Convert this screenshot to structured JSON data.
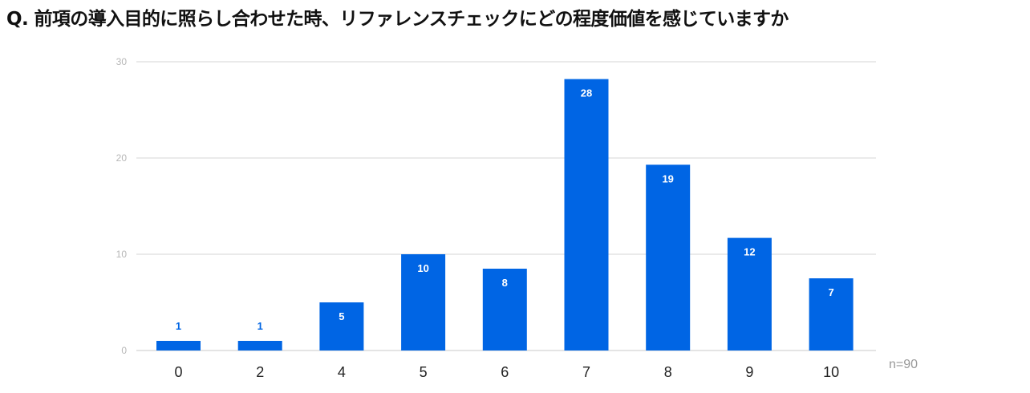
{
  "chart_data": {
    "type": "bar",
    "title": "Q. 前項の導入目的に照らし合わせた時、リファレンスチェックにどの程度価値を感じていますか",
    "categories": [
      "0",
      "2",
      "4",
      "5",
      "6",
      "7",
      "8",
      "9",
      "10"
    ],
    "values": [
      1,
      1,
      5,
      10,
      8.5,
      28.2,
      19.3,
      11.7,
      7.5
    ],
    "data_labels": [
      "1",
      "1",
      "5",
      "10",
      "8",
      "28",
      "19",
      "12",
      "7"
    ],
    "yticks": [
      "0",
      "10",
      "20",
      "30"
    ],
    "ylim": [
      0,
      30
    ],
    "grid": true,
    "legend": "none",
    "bar_color": "#0065e4",
    "label_inside_color": "#ffffff",
    "label_outside_color": "#0065e4",
    "note": "n=90"
  }
}
